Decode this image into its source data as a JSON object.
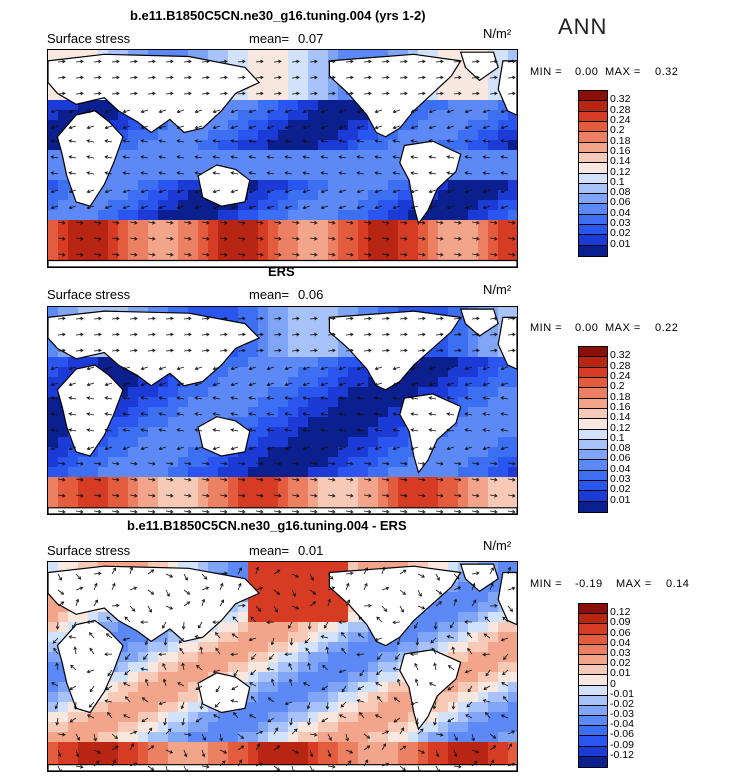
{
  "season": "ANN",
  "colors": {
    "scale_pos": [
      "#0b1f8f",
      "#1b3ad6",
      "#2a55ee",
      "#3d6ff3",
      "#5c89f5",
      "#80a5f7",
      "#a7c3f9",
      "#d2e2fb",
      "#f9e8e0",
      "#f7c9b7",
      "#f2a58a",
      "#ec8063",
      "#e45c3e",
      "#d63c24",
      "#b82513",
      "#8a0f08"
    ],
    "scale_diff": [
      "#0b1f8f",
      "#1b3ad6",
      "#2a55ee",
      "#3d6ff3",
      "#5c89f5",
      "#80a5f7",
      "#a7c3f9",
      "#d2e2fb",
      "#f9e8e0",
      "#f7c9b7",
      "#f2a58a",
      "#ec8063",
      "#e45c3e",
      "#d63c24",
      "#b82513",
      "#8a0f08"
    ]
  },
  "panels": [
    {
      "title": "b.e11.B1850C5CN.ne30_g16.tuning.004 (yrs 1-2)",
      "field": "Surface stress",
      "mean_label": "mean=",
      "mean_value": "0.07",
      "unit": "N/m²",
      "min_label": "MIN =",
      "min_value": "0.00",
      "max_label": "MAX =",
      "max_value": "0.32",
      "colorbar_labels": [
        "0.32",
        "0.28",
        "0.24",
        "0.2",
        "0.18",
        "0.16",
        "0.14",
        "0.12",
        "0.1",
        "0.08",
        "0.06",
        "0.04",
        "0.03",
        "0.02",
        "0.01"
      ],
      "style": "model"
    },
    {
      "title": "ERS",
      "field": "Surface stress",
      "mean_label": "mean=",
      "mean_value": "0.06",
      "unit": "N/m²",
      "min_label": "MIN =",
      "min_value": "0.00",
      "max_label": "MAX =",
      "max_value": "0.22",
      "colorbar_labels": [
        "0.32",
        "0.28",
        "0.24",
        "0.2",
        "0.18",
        "0.16",
        "0.14",
        "0.12",
        "0.1",
        "0.08",
        "0.06",
        "0.04",
        "0.03",
        "0.02",
        "0.01"
      ],
      "style": "obs"
    },
    {
      "title": "b.e11.B1850C5CN.ne30_g16.tuning.004 - ERS",
      "field": "Surface stress",
      "mean_label": "mean=",
      "mean_value": "0.01",
      "unit": "N/m²",
      "min_label": "MIN =",
      "min_value": "-0.19",
      "max_label": "MAX =",
      "max_value": "0.14",
      "colorbar_labels": [
        "0.12",
        "0.09",
        "0.06",
        "0.04",
        "0.03",
        "0.02",
        "0.01",
        "0",
        "-0.01",
        "-0.02",
        "-0.03",
        "-0.04",
        "-0.06",
        "-0.09",
        "-0.12"
      ],
      "style": "diff"
    }
  ]
}
